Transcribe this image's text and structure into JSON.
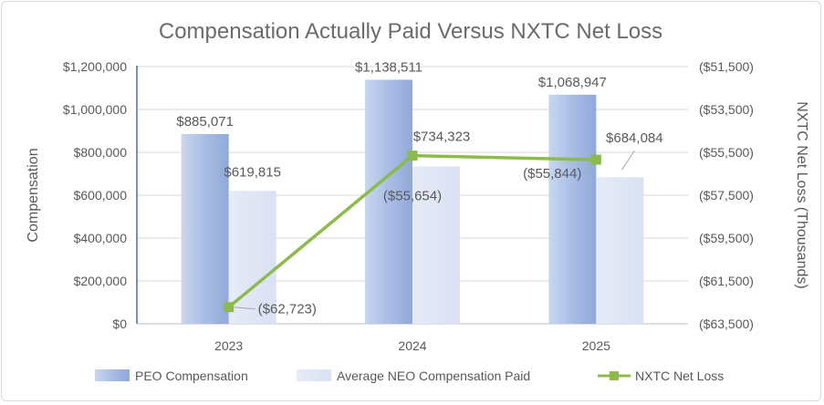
{
  "chart_data": {
    "type": "bar",
    "title": "Compensation Actually Paid Versus NXTC Net Loss",
    "categories": [
      "2023",
      "2024",
      "2025"
    ],
    "ylabel": "Compensation",
    "y2label": "NXTC Net Loss (Thousands)",
    "ylim": [
      0,
      1200000
    ],
    "y2lim": [
      -63500,
      -51500
    ],
    "yticks": [
      {
        "value": 0,
        "label": "$0"
      },
      {
        "value": 200000,
        "label": "$200,000"
      },
      {
        "value": 400000,
        "label": "$400,000"
      },
      {
        "value": 600000,
        "label": "$600,000"
      },
      {
        "value": 800000,
        "label": "$800,000"
      },
      {
        "value": 1000000,
        "label": "$1,000,000"
      },
      {
        "value": 1200000,
        "label": "$1,200,000"
      }
    ],
    "y2ticks": [
      {
        "value": -63500,
        "label": "($63,500)"
      },
      {
        "value": -61500,
        "label": "($61,500)"
      },
      {
        "value": -59500,
        "label": "($59,500)"
      },
      {
        "value": -57500,
        "label": "($57,500)"
      },
      {
        "value": -55500,
        "label": "($55,500)"
      },
      {
        "value": -53500,
        "label": "($53,500)"
      },
      {
        "value": -51500,
        "label": "($51,500)"
      }
    ],
    "series": [
      {
        "name": "PEO Compensation",
        "kind": "bar",
        "axis": "left",
        "color": "#a4b8e0",
        "values": [
          885071,
          1138511,
          1068947
        ],
        "labels": [
          "$885,071",
          "$1,138,511",
          "$1,068,947"
        ]
      },
      {
        "name": "Average NEO Compensation Paid",
        "kind": "bar",
        "axis": "left",
        "color": "#dde4f5",
        "values": [
          619815,
          734323,
          684084
        ],
        "labels": [
          "$619,815",
          "$734,323",
          "$684,084"
        ]
      },
      {
        "name": "NXTC Net Loss",
        "kind": "line",
        "axis": "right",
        "color": "#8cbb4a",
        "values": [
          -62723,
          -55654,
          -55844
        ],
        "labels": [
          "($62,723)",
          "($55,654)",
          "($55,844)"
        ]
      }
    ],
    "grid": true,
    "legend_position": "bottom"
  }
}
